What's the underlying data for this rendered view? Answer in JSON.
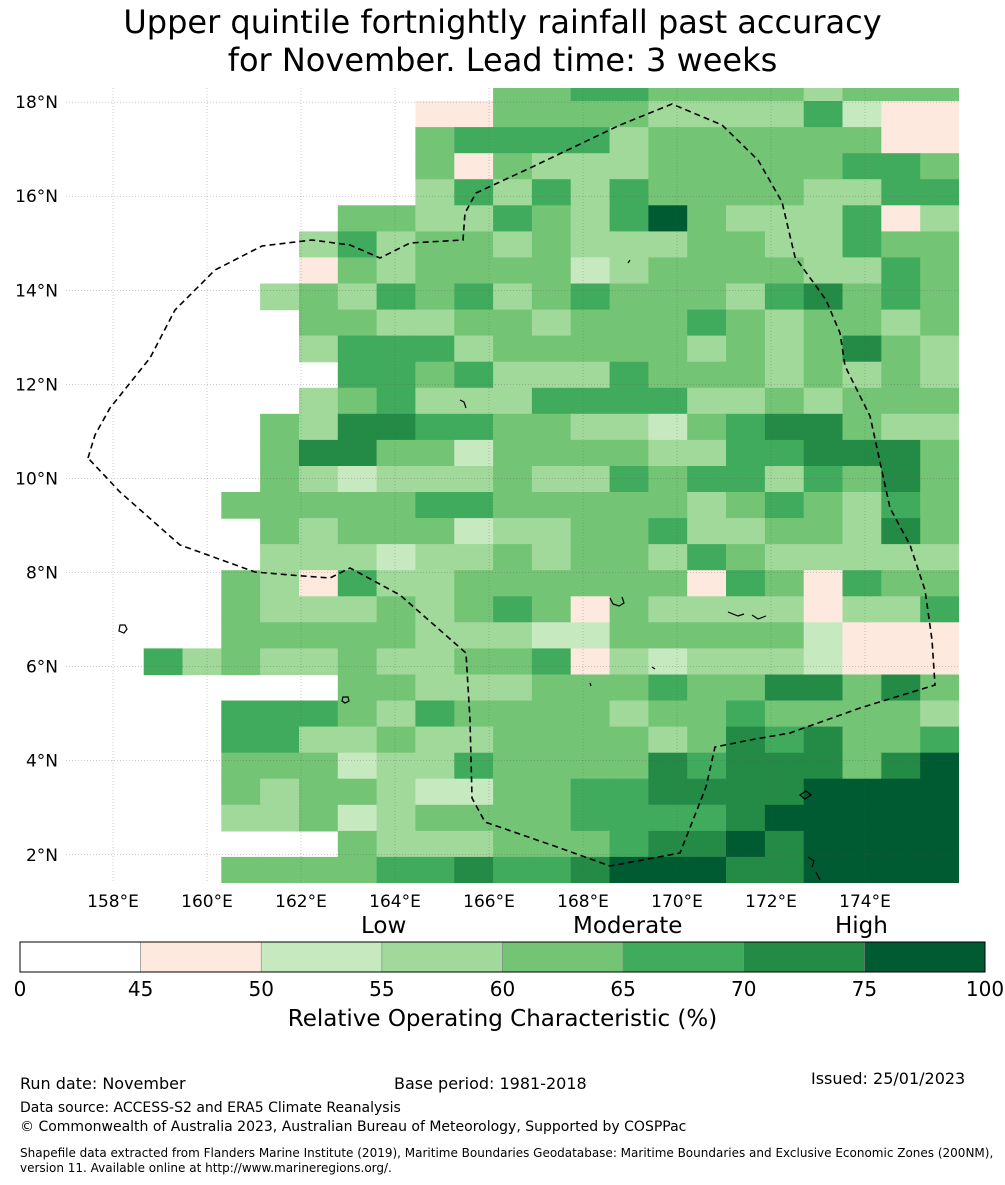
{
  "title": {
    "line1": "Upper quintile fortnightly rainfall past accuracy",
    "line2": "for November. Lead time: 3 weeks"
  },
  "map": {
    "lat_labels": [
      "18°N",
      "16°N",
      "14°N",
      "12°N",
      "10°N",
      "8°N",
      "6°N",
      "4°N",
      "2°N"
    ],
    "lon_labels": [
      "158°E",
      "160°E",
      "162°E",
      "164°E",
      "166°E",
      "168°E",
      "170°E",
      "172°E",
      "174°E"
    ],
    "lat_range": [
      1.4,
      18.3
    ],
    "lon_range": [
      157.0,
      176.0
    ],
    "grid_rows": [
      "_445544443444",
      "11444433335211",
      "45555344444411",
      "41433344444554",
      "35353544443355",
      "4433543574333513",
      "35344343334433544",
      "14344442344443354",
      "343545345444356454",
      "44334434445434434",
      "35553444443434643",
      "5545333544434343",
      "34533355553343444",
      "436655443324566433",
      "466442444433556664",
      "432333433545535464",
      "4444455444443454354",
      "434442334453344364",
      "333233434435433333",
      "4315334444441541544",
      "4333434541433331335",
      "4444433322444442111",
      "534334334451323332111",
      "4433344454466464",
      "5554354444344544443",
      "5533433444434656445",
      "4442335444465666467",
      "4344322445566667777",
      "3342344445555677777",
      "4333444566767777",
      "4444556556777667777",
      "444444445556777"
    ],
    "palette": [
      "#ffffff",
      "#fee9df",
      "#c7e9c0",
      "#a1d99b",
      "#74c476",
      "#41ab5d",
      "#238b45",
      "#005a32"
    ]
  },
  "colorbar": {
    "qualitative": [
      "Low",
      "Moderate",
      "High"
    ],
    "ticks": [
      "0",
      "45",
      "50",
      "55",
      "60",
      "65",
      "70",
      "75",
      "100"
    ],
    "label": "Relative Operating Characteristic (%)"
  },
  "footer": {
    "run_date": "Run date: November",
    "base_period": "Base period: 1981-2018",
    "issued": "Issued: 25/01/2023",
    "data_source": "Data source: ACCESS-S2 and ERA5 Climate Reanalysis",
    "copyright": "© Commonwealth of Australia 2023, Australian Bureau of Meteorology, Supported by COSPPac",
    "shapefile_line1": "Shapefile data extracted from Flanders Marine Institute (2019), Maritime Boundaries Geodatabase: Maritime Boundaries and Exclusive Economic Zones (200NM),",
    "shapefile_line2": "version 11. Available online at http://www.marineregions.org/."
  }
}
